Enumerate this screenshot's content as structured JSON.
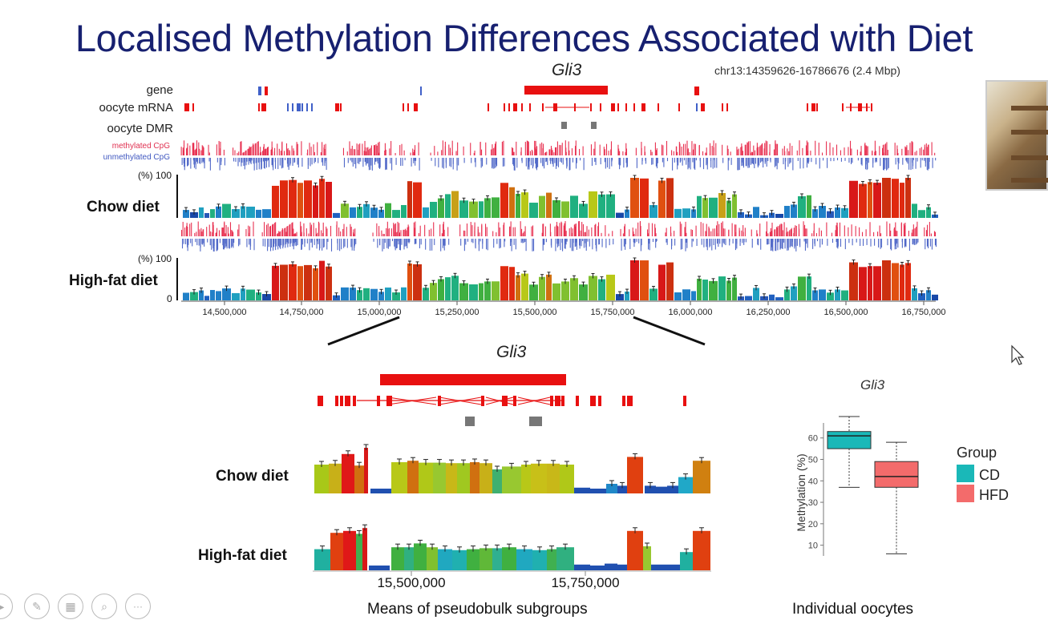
{
  "slide": {
    "title": "Localised Methylation Differences Associated with Diet"
  },
  "browser_top": {
    "gene_name": "Gli3",
    "region": "chr13:14359626-16786676 (2.4 Mbp)",
    "tracks": {
      "gene": "gene",
      "mrna": "oocyte mRNA",
      "dmr": "oocyte DMR",
      "methylated": "methylated CpG",
      "unmethylated": "unmethylated CpG"
    },
    "pct_label": "(%) 100",
    "pct_label_2": "(%) 100",
    "zero": "0",
    "chow_label": "Chow diet",
    "hfd_label": "High-fat diet",
    "axis_ticks": [
      "14,500,000",
      "14,750,000",
      "15,000,000",
      "15,250,000",
      "15,500,000",
      "15,750,000",
      "16,000,000",
      "16,250,000",
      "16,500,000",
      "16,750,000"
    ]
  },
  "browser_zoom": {
    "gene_name": "Gli3",
    "chow_label": "Chow diet",
    "hfd_label": "High-fat diet",
    "axis_ticks": [
      "15,500,000",
      "15,750,000"
    ],
    "caption": "Means of pseudobulk subgroups"
  },
  "boxplot": {
    "title": "Gli3",
    "ylabel": "Methylation (%)",
    "legend_title": "Group",
    "caption": "Individual oocytes",
    "y_ticks": [
      "60",
      "50",
      "40",
      "30",
      "20",
      "10"
    ]
  },
  "chart_data": {
    "type": "box",
    "title": "Gli3",
    "ylabel": "Methylation (%)",
    "ylim": [
      5,
      68
    ],
    "series": [
      {
        "name": "CD",
        "color": "#1ab8b8",
        "min": 37,
        "q1": 55,
        "median": 61,
        "q3": 63,
        "max": 70
      },
      {
        "name": "HFD",
        "color": "#f36b6b",
        "min": 6,
        "q1": 37,
        "median": 42,
        "q3": 49,
        "max": 58
      }
    ]
  },
  "controls": {
    "icons": [
      "play-icon",
      "pen-icon",
      "slides-icon",
      "zoom-icon",
      "more-icon"
    ],
    "more_label": "···"
  }
}
